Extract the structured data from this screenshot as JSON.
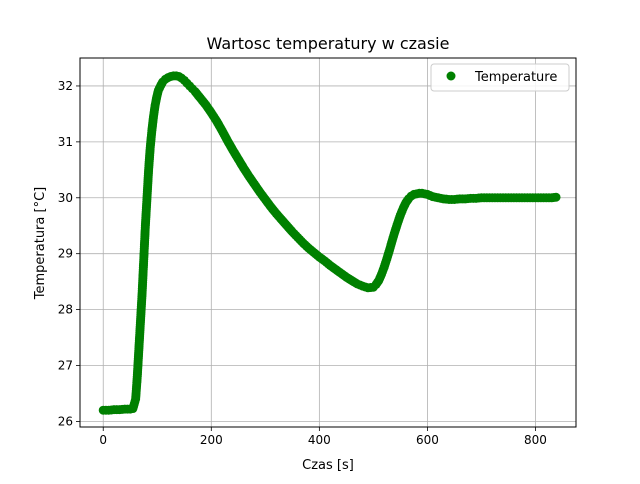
{
  "chart_data": {
    "type": "scatter",
    "title": "Wartosc temperatury w czasie",
    "xlabel": "Czas [s]",
    "ylabel": "Temperatura [°C]",
    "xlim": [
      -43,
      875
    ],
    "ylim": [
      25.9,
      32.5
    ],
    "xticks": [
      0,
      200,
      400,
      600,
      800
    ],
    "yticks": [
      26,
      27,
      28,
      29,
      30,
      31,
      32
    ],
    "grid": true,
    "legend": {
      "position": "top-right",
      "entries": [
        "Temperature"
      ]
    },
    "series": [
      {
        "name": "Temperature",
        "color": "#008000",
        "marker": "circle",
        "x": [
          0,
          10,
          20,
          30,
          40,
          50,
          55,
          60,
          63,
          66,
          69,
          72,
          75,
          78,
          81,
          84,
          87,
          90,
          93,
          96,
          99,
          102,
          106,
          110,
          115,
          120,
          125,
          130,
          135,
          140,
          145,
          150,
          155,
          160,
          165,
          170,
          175,
          180,
          190,
          200,
          210,
          220,
          230,
          240,
          250,
          260,
          270,
          280,
          290,
          300,
          310,
          320,
          330,
          340,
          350,
          360,
          370,
          380,
          390,
          400,
          410,
          420,
          430,
          440,
          450,
          460,
          470,
          480,
          490,
          500,
          505,
          510,
          515,
          520,
          525,
          530,
          535,
          540,
          545,
          550,
          555,
          560,
          565,
          570,
          575,
          580,
          585,
          590,
          595,
          600,
          605,
          610,
          615,
          620,
          625,
          630,
          640,
          650,
          660,
          670,
          680,
          690,
          700,
          710,
          720,
          730,
          740,
          750,
          760,
          770,
          780,
          790,
          800,
          810,
          820,
          830,
          838
        ],
        "y": [
          26.2,
          26.2,
          26.21,
          26.21,
          26.22,
          26.22,
          26.23,
          26.4,
          26.8,
          27.3,
          27.8,
          28.3,
          28.9,
          29.5,
          30.0,
          30.5,
          30.9,
          31.2,
          31.45,
          31.65,
          31.8,
          31.92,
          32.0,
          32.07,
          32.12,
          32.15,
          32.17,
          32.18,
          32.18,
          32.17,
          32.14,
          32.1,
          32.05,
          32.0,
          31.95,
          31.9,
          31.84,
          31.78,
          31.66,
          31.52,
          31.37,
          31.2,
          31.02,
          30.85,
          30.69,
          30.53,
          30.38,
          30.24,
          30.1,
          29.97,
          29.84,
          29.72,
          29.61,
          29.5,
          29.39,
          29.29,
          29.19,
          29.1,
          29.02,
          28.94,
          28.87,
          28.79,
          28.72,
          28.65,
          28.58,
          28.52,
          28.46,
          28.42,
          28.39,
          28.4,
          28.45,
          28.52,
          28.63,
          28.76,
          28.91,
          29.07,
          29.24,
          29.4,
          29.55,
          29.69,
          29.81,
          29.91,
          29.98,
          30.03,
          30.06,
          30.07,
          30.08,
          30.08,
          30.07,
          30.06,
          30.04,
          30.02,
          30.01,
          30.0,
          29.99,
          29.98,
          29.97,
          29.97,
          29.98,
          29.98,
          29.99,
          29.99,
          30.0,
          30.0,
          30.0,
          30.0,
          30.0,
          30.0,
          30.0,
          30.0,
          30.0,
          30.0,
          30.0,
          30.0,
          30.0,
          30.0,
          30.01
        ]
      }
    ]
  }
}
